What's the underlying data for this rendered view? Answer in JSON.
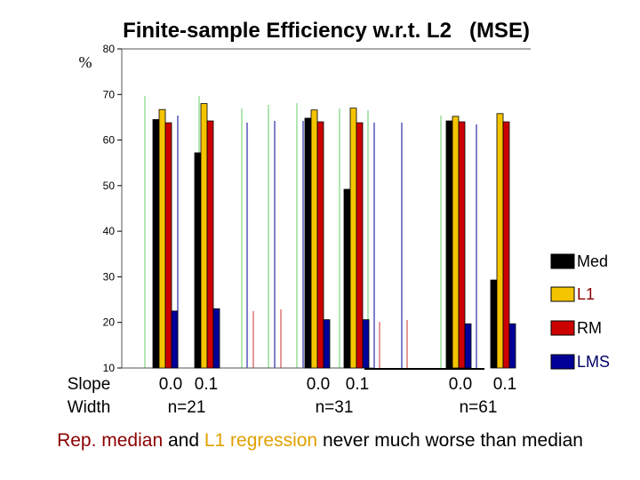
{
  "chart_data": {
    "type": "bar",
    "title": "Finite-sample Efficiency w.r.t. L2   (MSE)",
    "ylabel": "%",
    "ylim": [
      10,
      80
    ],
    "yticks": [
      10,
      20,
      30,
      40,
      50,
      60,
      70,
      80
    ],
    "row_labels": [
      "Slope",
      "Width"
    ],
    "groups": [
      {
        "ticks": [
          "0.0",
          "0.1"
        ],
        "label": "n=21"
      },
      {
        "ticks": [
          "0.0",
          "0.1"
        ],
        "label": "n=31"
      },
      {
        "ticks": [
          "0.0",
          "0.1"
        ],
        "label": "n=61"
      }
    ],
    "categories": [
      "0.0 n=21",
      "0.1 n=21",
      "0.0 n=31",
      "0.1 n=31",
      "0.0 n=61",
      "0.1 n=61"
    ],
    "series": [
      {
        "name": "Med",
        "color": "#000000",
        "values": [
          64.5,
          57.2,
          64.8,
          49.2,
          64.2,
          29.3
        ]
      },
      {
        "name": "L1",
        "color": "#F5C400",
        "values": [
          66.7,
          68.0,
          66.6,
          67.0,
          65.2,
          65.8
        ]
      },
      {
        "name": "RM",
        "color": "#CC0000",
        "values": [
          63.8,
          64.2,
          64.0,
          63.8,
          64.0,
          64.0
        ]
      },
      {
        "name": "LMS",
        "color": "#000099",
        "values": [
          22.5,
          23.0,
          20.6,
          20.6,
          19.7,
          19.7
        ]
      }
    ],
    "legend_position": "right",
    "grid": false
  },
  "footnote": {
    "part1": "Rep. median",
    "part2": " and ",
    "part3": "L1 regression",
    "part4": " never much worse than median"
  },
  "colors": {
    "footnote_rm": "#8B0000",
    "footnote_l1": "#E0A000"
  }
}
